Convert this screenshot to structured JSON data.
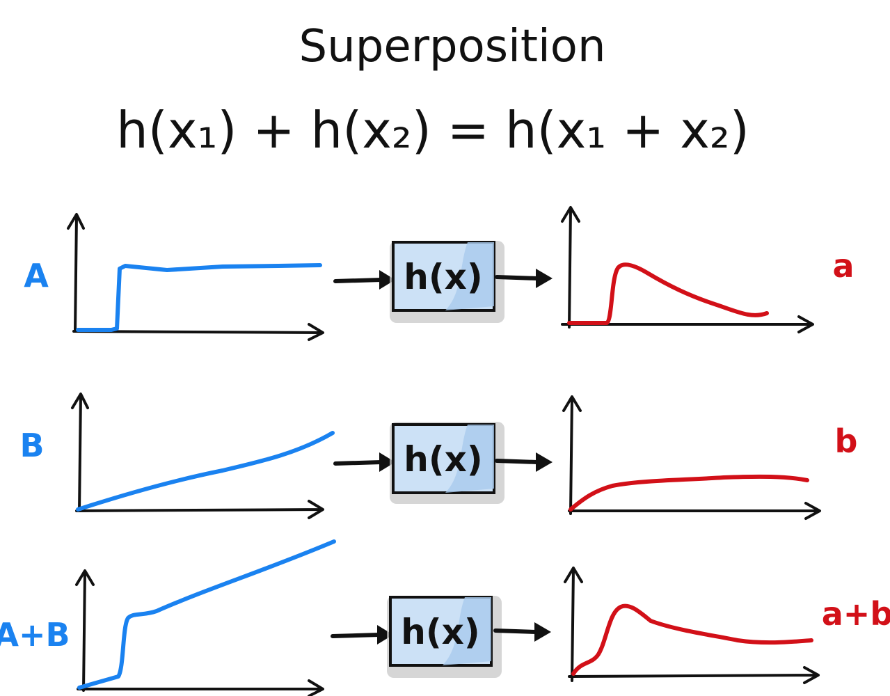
{
  "title": "Superposition",
  "formula": "h(x₁) + h(x₂) = h(x₁ + x₂)",
  "colors": {
    "input": "#1a82f0",
    "output": "#d21018",
    "box_fill": "#cce1f6",
    "ink": "#111111"
  },
  "system_label": "h(x)",
  "rows": [
    {
      "input_label": "A",
      "output_label": "a",
      "input_shape": "step",
      "output_shape": "pulse-decay"
    },
    {
      "input_label": "B",
      "output_label": "b",
      "input_shape": "ramp",
      "output_shape": "rise-plateau"
    },
    {
      "input_label": "A+B",
      "output_label": "a+b",
      "input_shape": "step-plus-ramp",
      "output_shape": "pulse-decay-plateau"
    }
  ]
}
